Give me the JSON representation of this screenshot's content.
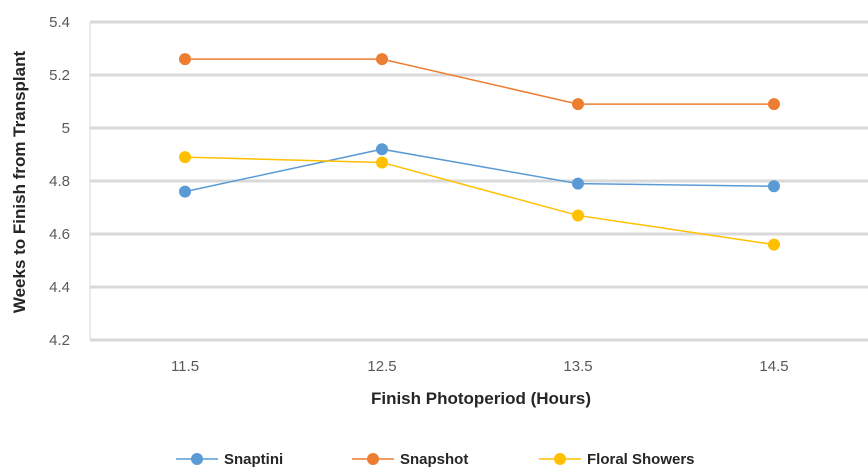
{
  "chart_data": {
    "type": "line",
    "x": [
      "11.5",
      "12.5",
      "13.5",
      "14.5"
    ],
    "xlabel": "Finish Photoperiod (Hours)",
    "ylabel": "Weeks to Finish from Transplant",
    "ylim": [
      4.2,
      5.4
    ],
    "yticks": [
      "4.2",
      "4.4",
      "4.6",
      "4.8",
      "5",
      "5.2",
      "5.4"
    ],
    "grid": "horizontal",
    "legend_position": "bottom",
    "series": [
      {
        "name": "Snaptini",
        "color": "#5B9BD5",
        "values": [
          4.76,
          4.92,
          4.79,
          4.78
        ]
      },
      {
        "name": "Snapshot",
        "color": "#ED7D31",
        "values": [
          5.26,
          5.26,
          5.09,
          5.09
        ]
      },
      {
        "name": "Floral Showers",
        "color": "#FFC000",
        "values": [
          4.89,
          4.87,
          4.67,
          4.56
        ]
      }
    ]
  }
}
